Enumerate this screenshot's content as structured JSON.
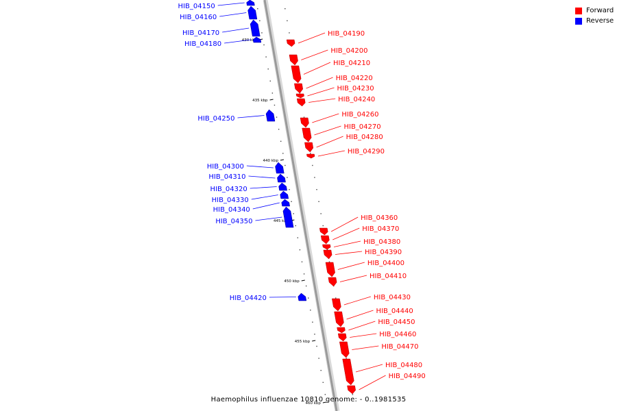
{
  "caption": "Haemophilus influenzae 10810 genome: - 0..1981535",
  "legend": [
    {
      "label": "Forward",
      "color": "#ff0000"
    },
    {
      "label": "Reverse",
      "color": "#0000ff"
    }
  ],
  "colors": {
    "forward": "#ff0000",
    "reverse": "#0000ff",
    "backbone": "#9a9a9a"
  },
  "ticks_kbp": [
    "430 kbp",
    "435 kbp",
    "440 kbp",
    "445 kbp",
    "450 kbp",
    "455 kbp",
    "460 kbp"
  ],
  "genes": [
    {
      "name": "HIB_04150",
      "strand": "reverse"
    },
    {
      "name": "HIB_04160",
      "strand": "reverse"
    },
    {
      "name": "HIB_04170",
      "strand": "reverse"
    },
    {
      "name": "HIB_04180",
      "strand": "reverse"
    },
    {
      "name": "HIB_04190",
      "strand": "forward"
    },
    {
      "name": "HIB_04200",
      "strand": "forward"
    },
    {
      "name": "HIB_04210",
      "strand": "forward"
    },
    {
      "name": "HIB_04220",
      "strand": "forward"
    },
    {
      "name": "HIB_04230",
      "strand": "forward"
    },
    {
      "name": "HIB_04240",
      "strand": "forward"
    },
    {
      "name": "HIB_04250",
      "strand": "reverse"
    },
    {
      "name": "HIB_04260",
      "strand": "forward"
    },
    {
      "name": "HIB_04270",
      "strand": "forward"
    },
    {
      "name": "HIB_04280",
      "strand": "forward"
    },
    {
      "name": "HIB_04290",
      "strand": "forward"
    },
    {
      "name": "HIB_04300",
      "strand": "reverse"
    },
    {
      "name": "HIB_04310",
      "strand": "reverse"
    },
    {
      "name": "HIB_04320",
      "strand": "reverse"
    },
    {
      "name": "HIB_04330",
      "strand": "reverse"
    },
    {
      "name": "HIB_04340",
      "strand": "reverse"
    },
    {
      "name": "HIB_04350",
      "strand": "reverse"
    },
    {
      "name": "HIB_04360",
      "strand": "forward"
    },
    {
      "name": "HIB_04370",
      "strand": "forward"
    },
    {
      "name": "HIB_04380",
      "strand": "forward"
    },
    {
      "name": "HIB_04390",
      "strand": "forward"
    },
    {
      "name": "HIB_04400",
      "strand": "forward"
    },
    {
      "name": "HIB_04410",
      "strand": "forward"
    },
    {
      "name": "HIB_04420",
      "strand": "reverse"
    },
    {
      "name": "HIB_04430",
      "strand": "forward"
    },
    {
      "name": "HIB_04440",
      "strand": "forward"
    },
    {
      "name": "HIB_04450",
      "strand": "forward"
    },
    {
      "name": "HIB_04460",
      "strand": "forward"
    },
    {
      "name": "HIB_04470",
      "strand": "forward"
    },
    {
      "name": "HIB_04480",
      "strand": "forward"
    },
    {
      "name": "HIB_04490",
      "strand": "forward"
    }
  ]
}
